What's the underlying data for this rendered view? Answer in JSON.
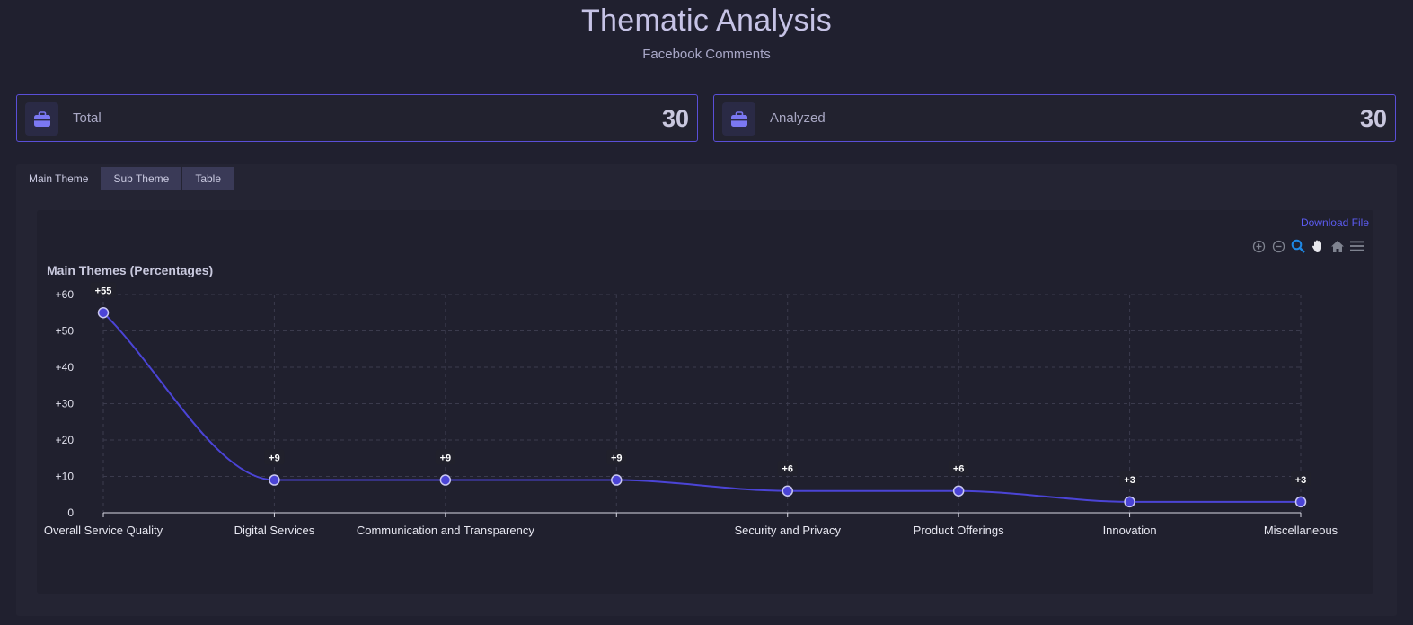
{
  "header": {
    "title": "Thematic Analysis",
    "subtitle": "Facebook Comments"
  },
  "stats": [
    {
      "label": "Total",
      "value": "30",
      "icon": "briefcase-icon"
    },
    {
      "label": "Analyzed",
      "value": "30",
      "icon": "briefcase-icon"
    }
  ],
  "tabs": [
    {
      "label": "Main Theme",
      "active": true
    },
    {
      "label": "Sub Theme",
      "active": false
    },
    {
      "label": "Table",
      "active": false
    }
  ],
  "chart_toolbar": {
    "download_label": "Download File",
    "icons": [
      "zoom-in-icon",
      "zoom-out-icon",
      "selection-zoom-icon",
      "pan-hand-icon",
      "home-reset-icon",
      "menu-icon"
    ]
  },
  "colors": {
    "accent": "#5a4fd8",
    "line": "#4b44d6",
    "download": "#5b5bf0",
    "background": "#20202f"
  },
  "chart_data": {
    "type": "line",
    "title": "Main Themes (Percentages)",
    "categories": [
      "Overall Service Quality",
      "Digital Services",
      "Communication and Transparency",
      "",
      "Security and Privacy",
      "Product Offerings",
      "Innovation",
      "Miscellaneous"
    ],
    "series": [
      {
        "values": [
          55,
          9,
          9,
          9,
          6,
          6,
          3,
          3
        ]
      }
    ],
    "data_labels": [
      "+55",
      "+9",
      "+9",
      "+9",
      "+6",
      "+6",
      "+3",
      "+3"
    ],
    "yticks": [
      "0",
      "+10",
      "+20",
      "+30",
      "+40",
      "+50",
      "+60"
    ],
    "ylim": [
      0,
      60
    ],
    "grid": true,
    "curve": "smooth"
  }
}
